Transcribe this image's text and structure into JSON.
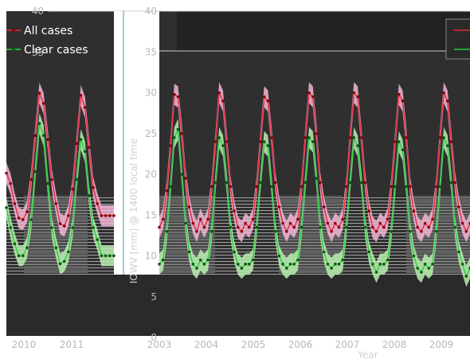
{
  "chart_data": [
    {
      "type": "line",
      "panel": "left",
      "x": [
        "2009-10",
        "2009-11",
        "2009-12",
        "2010-01",
        "2010-02",
        "2010-03",
        "2010-04",
        "2010-05",
        "2010-06",
        "2010-07",
        "2010-08",
        "2010-09",
        "2010-10",
        "2010-11",
        "2010-12",
        "2011-01",
        "2011-02",
        "2011-03",
        "2011-04",
        "2011-05",
        "2011-06",
        "2011-07",
        "2011-08",
        "2011-09",
        "2011-10",
        "2011-11",
        "2011-12"
      ],
      "series": [
        {
          "name": "All cases",
          "color": "#e8283c",
          "band_color": "#f2b6d6",
          "values": [
            19.8,
            18.5,
            16.0,
            14.2,
            14.0,
            15.0,
            19.0,
            24.5,
            29.8,
            28.5,
            24.0,
            19.0,
            16.0,
            13.5,
            13.2,
            14.5,
            17.8,
            23.5,
            29.5,
            28.0,
            23.0,
            18.0,
            16.0,
            14.5,
            14.5,
            14.5,
            14.5
          ]
        },
        {
          "name": "Clear cases",
          "color": "#2ecc40",
          "band_color": "#b8f0b0",
          "values": [
            15.5,
            13.0,
            11.0,
            9.5,
            9.5,
            10.5,
            14.0,
            20.0,
            26.0,
            24.5,
            18.5,
            13.0,
            10.5,
            8.5,
            8.8,
            10.0,
            13.0,
            19.0,
            24.0,
            22.5,
            17.0,
            13.0,
            11.5,
            9.5,
            9.5,
            9.5,
            9.5
          ]
        }
      ],
      "xticks": [
        "2010",
        "2011"
      ],
      "yticks": [
        40,
        35
      ],
      "ylim": [
        0,
        40
      ],
      "legend": [
        "All cases",
        "Clear cases"
      ],
      "legend_position": "top-left"
    },
    {
      "type": "line",
      "panel": "right",
      "x": [
        "2003-01",
        "2003-02",
        "2003-03",
        "2003-04",
        "2003-05",
        "2003-06",
        "2003-07",
        "2003-08",
        "2003-09",
        "2003-10",
        "2003-11",
        "2003-12",
        "2004-01",
        "2004-02",
        "2004-03",
        "2004-04",
        "2004-05",
        "2004-06",
        "2004-07",
        "2004-08",
        "2004-09",
        "2004-10",
        "2004-11",
        "2004-12",
        "2005-01",
        "2005-02",
        "2005-03",
        "2005-04",
        "2005-05",
        "2005-06",
        "2005-07",
        "2005-08",
        "2005-09",
        "2005-10",
        "2005-11",
        "2005-12",
        "2006-01",
        "2006-02",
        "2006-03",
        "2006-04",
        "2006-05",
        "2006-06",
        "2006-07",
        "2006-08",
        "2006-09",
        "2006-10",
        "2006-11",
        "2006-12",
        "2007-01",
        "2007-02",
        "2007-03",
        "2007-04",
        "2007-05",
        "2007-06",
        "2007-07",
        "2007-08",
        "2007-09",
        "2007-10",
        "2007-11",
        "2007-12",
        "2008-01",
        "2008-02",
        "2008-03",
        "2008-04",
        "2008-05",
        "2008-06",
        "2008-07",
        "2008-08",
        "2008-09",
        "2008-10",
        "2008-11",
        "2008-12",
        "2009-01",
        "2009-02",
        "2009-03",
        "2009-04",
        "2009-05",
        "2009-06",
        "2009-07",
        "2009-08",
        "2009-09",
        "2009-10",
        "2009-11",
        "2009-12"
      ],
      "series": [
        {
          "name": "All cases",
          "color": "#e8283c",
          "band_color": "#f2b6d6",
          "values": [
            13.5,
            14.5,
            18.0,
            23.5,
            29.8,
            29.5,
            25.0,
            19.5,
            16.0,
            14.0,
            13.0,
            14.5,
            13.5,
            14.5,
            18.5,
            24.0,
            30.0,
            29.0,
            24.0,
            18.5,
            15.5,
            13.5,
            13.0,
            14.0,
            13.5,
            14.5,
            18.5,
            24.0,
            29.5,
            29.0,
            24.5,
            19.0,
            16.0,
            14.0,
            13.0,
            14.0,
            13.5,
            14.5,
            18.5,
            24.5,
            30.0,
            29.5,
            25.0,
            19.0,
            16.0,
            14.0,
            13.0,
            14.0,
            13.5,
            14.5,
            18.5,
            24.5,
            30.0,
            29.5,
            24.5,
            19.0,
            15.5,
            13.5,
            13.0,
            14.0,
            13.5,
            14.5,
            18.5,
            24.0,
            29.8,
            29.0,
            24.5,
            18.5,
            15.5,
            13.5,
            13.0,
            14.0,
            13.5,
            14.5,
            18.5,
            24.5,
            30.0,
            29.0,
            24.0,
            19.0,
            16.0,
            14.0,
            13.0,
            14.0
          ]
        },
        {
          "name": "Clear cases",
          "color": "#2ecc40",
          "band_color": "#b8f0b0",
          "values": [
            9.0,
            9.5,
            13.0,
            18.5,
            24.5,
            25.5,
            20.0,
            14.0,
            10.5,
            9.0,
            8.5,
            9.5,
            9.0,
            9.5,
            13.0,
            19.0,
            24.5,
            23.5,
            19.0,
            13.5,
            10.5,
            9.0,
            8.5,
            9.0,
            9.0,
            9.5,
            13.5,
            19.0,
            24.0,
            23.5,
            18.5,
            13.0,
            10.0,
            9.0,
            8.5,
            9.0,
            9.0,
            9.5,
            13.5,
            19.0,
            24.5,
            24.0,
            19.5,
            13.5,
            10.5,
            9.0,
            8.5,
            9.0,
            9.0,
            9.5,
            13.5,
            19.0,
            24.5,
            23.5,
            19.0,
            13.5,
            10.5,
            9.0,
            8.0,
            9.0,
            9.0,
            9.5,
            13.0,
            18.5,
            24.0,
            23.0,
            18.5,
            13.0,
            10.0,
            8.5,
            8.0,
            9.0,
            8.5,
            9.0,
            13.0,
            18.5,
            24.5,
            23.5,
            19.0,
            13.5,
            10.5,
            9.0,
            7.5,
            8.5
          ]
        }
      ],
      "xticks": [
        "2003",
        "2004",
        "2005",
        "2006",
        "2007",
        "2008",
        "2009"
      ],
      "yticks": [
        0,
        5,
        10,
        15,
        20,
        25,
        30,
        35,
        40
      ],
      "ylim": [
        0,
        40
      ],
      "ylabel": "IOWV [mm] @ 1400 local time",
      "xlabel": "Year",
      "legend_position": "top-right"
    }
  ]
}
